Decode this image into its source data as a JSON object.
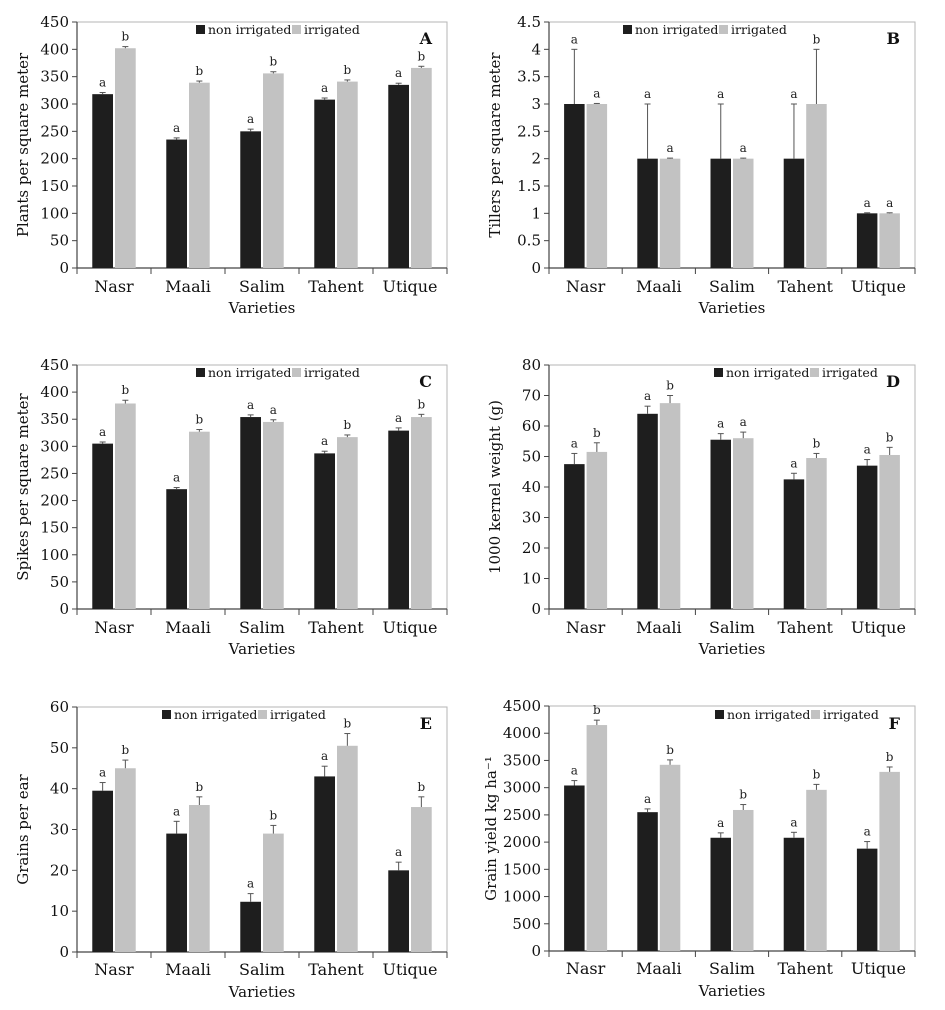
{
  "figure": {
    "series_names": [
      "non irrigated",
      "irrigated"
    ],
    "colors": {
      "non_irrigated": "#1e1e1e",
      "irrigated": "#c2c2c2",
      "axis": "#444444",
      "error_bar": "#555555"
    }
  },
  "chart_data": [
    {
      "panel": "A",
      "type": "bar",
      "ylabel": "Plants  per square meter",
      "xlabel": "Varieties",
      "categories": [
        "Nasr",
        "Maali",
        "Salim",
        "Tahent",
        "Utique"
      ],
      "ylim": [
        0,
        450
      ],
      "ystep": 50,
      "ytick_labels": [
        "0",
        "50",
        "100",
        "150",
        "200",
        "250",
        "300",
        "350",
        "400",
        "450"
      ],
      "legend_position": "top-right",
      "series": [
        {
          "name": "non irrigated",
          "values": [
            318,
            235,
            250,
            308,
            335
          ],
          "errors": [
            3,
            3,
            4,
            3,
            3
          ],
          "letters": [
            "a",
            "a",
            "a",
            "a",
            "a"
          ]
        },
        {
          "name": "irrigated",
          "values": [
            402,
            339,
            356,
            341,
            366
          ],
          "errors": [
            3,
            3,
            3,
            3,
            3
          ],
          "letters": [
            "b",
            "b",
            "b",
            "b",
            "b"
          ]
        }
      ]
    },
    {
      "panel": "B",
      "type": "bar",
      "ylabel": "Tillers per square meter",
      "xlabel": "Varieties",
      "categories": [
        "Nasr",
        "Maali",
        "Salim",
        "Tahent",
        "Utique"
      ],
      "ylim": [
        0,
        4.5
      ],
      "ystep": 0.5,
      "ytick_labels": [
        "0",
        "0.5",
        "1",
        "1.5",
        "2",
        "2.5",
        "3",
        "3.5",
        "4",
        "4.5"
      ],
      "legend_position": "top-right",
      "series": [
        {
          "name": "non irrigated",
          "values": [
            3,
            2,
            2,
            2,
            1
          ],
          "errors": [
            1,
            1,
            1,
            1,
            0.01
          ],
          "letters": [
            "a",
            "a",
            "a",
            "a",
            "a"
          ]
        },
        {
          "name": "irrigated",
          "values": [
            3,
            2,
            2,
            3,
            1
          ],
          "errors": [
            0.01,
            0.01,
            0.01,
            1,
            0.01
          ],
          "letters": [
            "a",
            "a",
            "a",
            "b",
            "a"
          ]
        }
      ]
    },
    {
      "panel": "C",
      "type": "bar",
      "ylabel": "Spikes per square meter",
      "xlabel": "Varieties",
      "categories": [
        "Nasr",
        "Maali",
        "Salim",
        "Tahent",
        "Utique"
      ],
      "ylim": [
        0,
        450
      ],
      "ystep": 50,
      "ytick_labels": [
        "0",
        "50",
        "100",
        "150",
        "200",
        "250",
        "300",
        "350",
        "400",
        "450"
      ],
      "legend_position": "top-right",
      "series": [
        {
          "name": "non irrigated",
          "values": [
            305,
            221,
            354,
            287,
            329
          ],
          "errors": [
            3,
            3,
            4,
            4,
            5
          ],
          "letters": [
            "a",
            "a",
            "a",
            "a",
            "a"
          ]
        },
        {
          "name": "irrigated",
          "values": [
            379,
            327,
            345,
            317,
            354
          ],
          "errors": [
            6,
            4,
            4,
            4,
            5
          ],
          "letters": [
            "b",
            "b",
            "a",
            "b",
            "b"
          ]
        }
      ]
    },
    {
      "panel": "D",
      "type": "bar",
      "ylabel": "1000 kernel weight (g)",
      "xlabel": "Varieties",
      "categories": [
        "Nasr",
        "Maali",
        "Salim",
        "Tahent",
        "Utique"
      ],
      "ylim": [
        0,
        80
      ],
      "ystep": 10,
      "ytick_labels": [
        "0",
        "10",
        "20",
        "30",
        "40",
        "50",
        "60",
        "70",
        "80"
      ],
      "legend_position": "top-right",
      "series": [
        {
          "name": "non irrigated",
          "values": [
            47.5,
            64,
            55.5,
            42.5,
            47
          ],
          "errors": [
            3.5,
            2.5,
            2,
            2,
            2
          ],
          "letters": [
            "a",
            "a",
            "a",
            "a",
            "a"
          ]
        },
        {
          "name": "irrigated",
          "values": [
            51.5,
            67.5,
            56,
            49.5,
            50.5
          ],
          "errors": [
            3,
            2.5,
            2,
            1.5,
            2.5
          ],
          "letters": [
            "b",
            "b",
            "a",
            "b",
            "b"
          ]
        }
      ]
    },
    {
      "panel": "E",
      "type": "bar",
      "ylabel": "Grains per ear",
      "xlabel": "Varieties",
      "categories": [
        "Nasr",
        "Maali",
        "Salim",
        "Tahent",
        "Utique"
      ],
      "ylim": [
        0,
        60
      ],
      "ystep": 10,
      "ytick_labels": [
        "0",
        "10",
        "20",
        "30",
        "40",
        "50",
        "60"
      ],
      "legend_position": "top-center",
      "series": [
        {
          "name": "non irrigated",
          "values": [
            39.5,
            29,
            12.3,
            43,
            20
          ],
          "errors": [
            2,
            3,
            2,
            2.5,
            2
          ],
          "letters": [
            "a",
            "a",
            "a",
            "a",
            "a"
          ]
        },
        {
          "name": "irrigated",
          "values": [
            45,
            36,
            29,
            50.5,
            35.5
          ],
          "errors": [
            2,
            2,
            2,
            3,
            2.5
          ],
          "letters": [
            "b",
            "b",
            "b",
            "b",
            "b"
          ]
        }
      ]
    },
    {
      "panel": "F",
      "type": "bar",
      "ylabel": "Grain yield kg ha⁻¹",
      "xlabel": "Varieties",
      "categories": [
        "Nasr",
        "Maali",
        "Salim",
        "Tahent",
        "Utique"
      ],
      "ylim": [
        0,
        4500
      ],
      "ystep": 500,
      "ytick_labels": [
        "0",
        "500",
        "1000",
        "1500",
        "2000",
        "2500",
        "3000",
        "3500",
        "4000",
        "4500"
      ],
      "legend_position": "top-right",
      "series": [
        {
          "name": "non irrigated",
          "values": [
            3040,
            2550,
            2080,
            2080,
            1880
          ],
          "errors": [
            90,
            60,
            90,
            100,
            130
          ],
          "letters": [
            "a",
            "a",
            "a",
            "a",
            "a"
          ]
        },
        {
          "name": "irrigated",
          "values": [
            4150,
            3420,
            2590,
            2960,
            3290
          ],
          "errors": [
            90,
            90,
            100,
            100,
            90
          ],
          "letters": [
            "b",
            "b",
            "b",
            "b",
            "b"
          ]
        }
      ]
    }
  ]
}
